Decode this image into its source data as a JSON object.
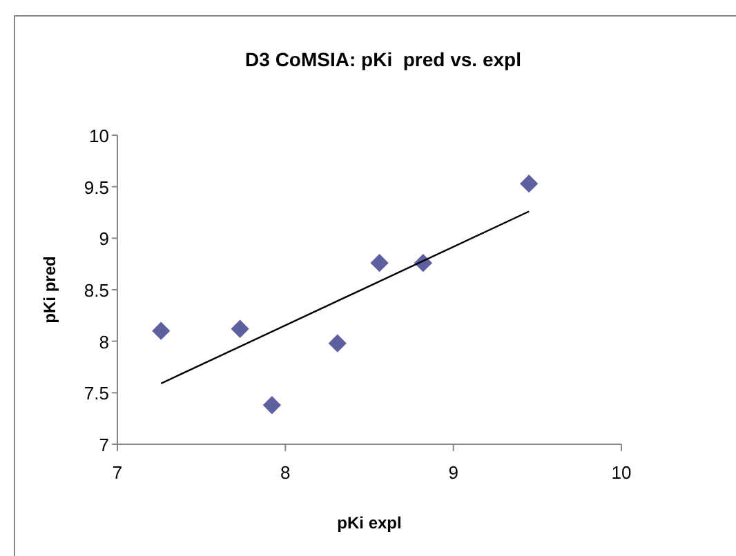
{
  "chart_data": {
    "type": "scatter",
    "title": "D3 CoMSIA: pKi  pred vs. expl",
    "xlabel": "pKi expl",
    "ylabel": "pKi pred",
    "xlim": [
      7,
      10
    ],
    "xticks": [
      7,
      8,
      9,
      10
    ],
    "ylim": [
      7,
      10
    ],
    "yticks": [
      7,
      7.5,
      8,
      8.5,
      9,
      9.5,
      10
    ],
    "grid": false,
    "marker": "diamond",
    "series": [
      {
        "color": "#5d5f9f",
        "x": [
          7.26,
          7.73,
          7.92,
          8.31,
          8.56,
          8.82,
          9.45
        ],
        "values": [
          8.1,
          8.12,
          7.38,
          7.98,
          8.76,
          8.76,
          9.53
        ]
      },
      {
        "type": "line",
        "color": "#000000",
        "marker": "none",
        "line_style": "solid",
        "x": [
          7.26,
          9.45
        ],
        "values": [
          7.59,
          9.26
        ]
      }
    ]
  }
}
